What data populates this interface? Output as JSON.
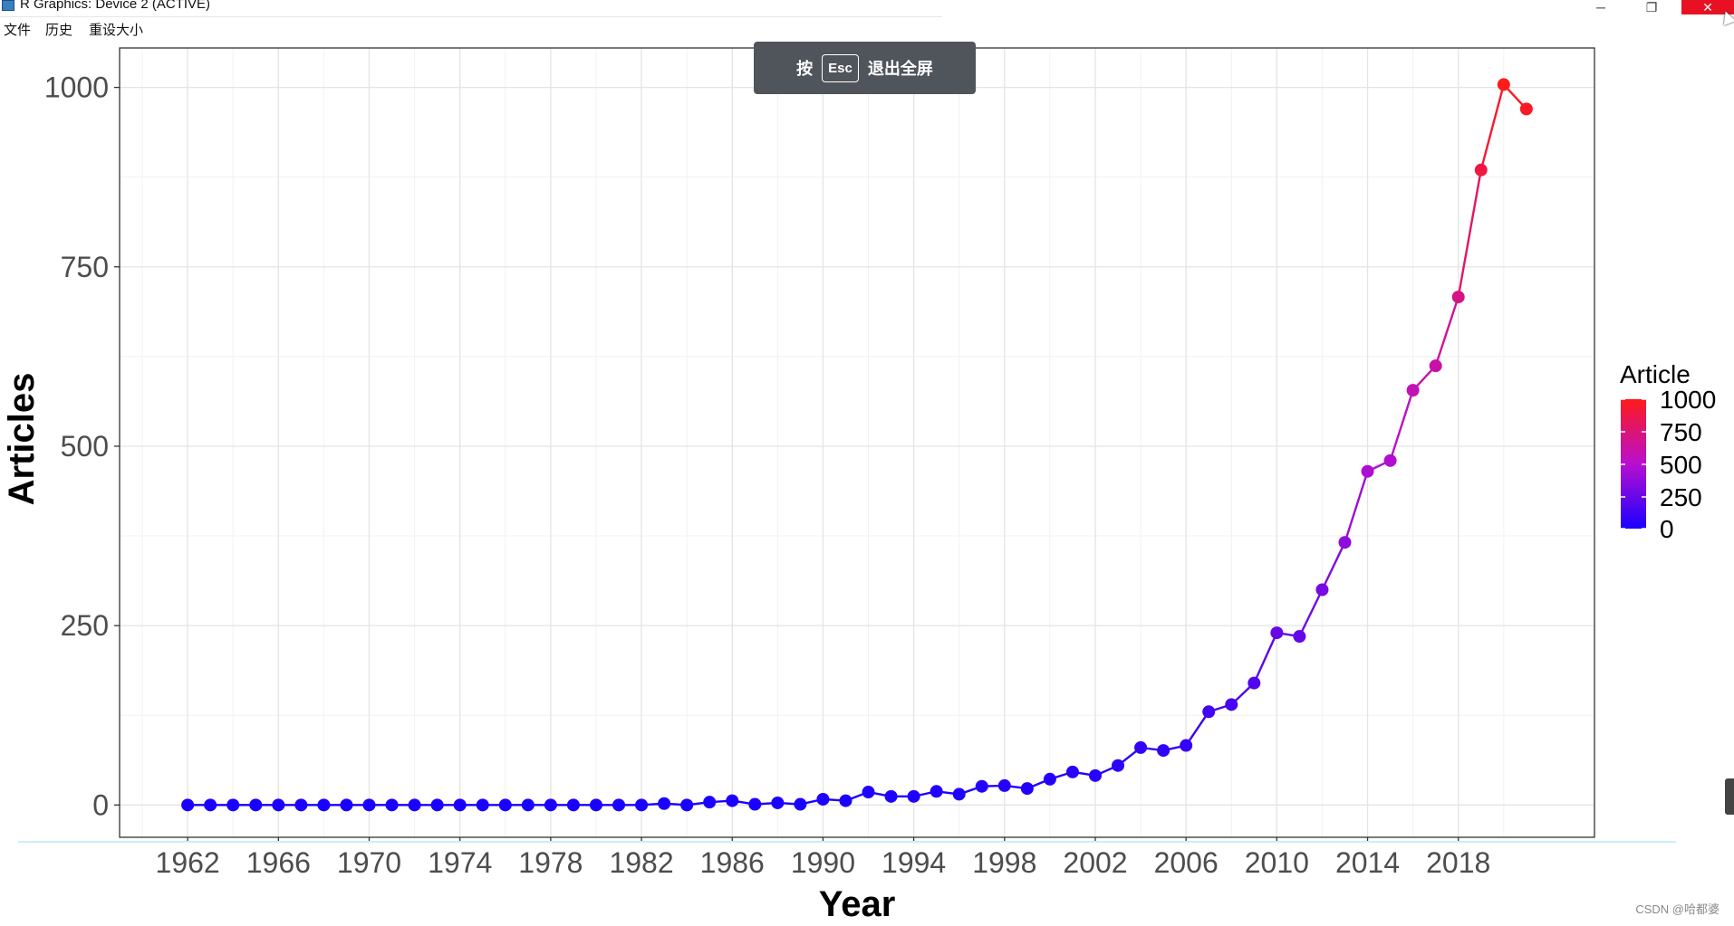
{
  "window": {
    "title": "R Graphics: Device 2 (ACTIVE)",
    "controls": {
      "minimize": "─",
      "maximize": "❐",
      "close": "✕"
    }
  },
  "menu": {
    "items": [
      "文件",
      "历史",
      "重设大小"
    ]
  },
  "esc_banner": {
    "prefix": "按",
    "key": "Esc",
    "suffix": "退出全屏"
  },
  "chart_data": {
    "type": "line",
    "xlabel": "Year",
    "ylabel": "Articles",
    "xlim": [
      1959,
      2024
    ],
    "ylim": [
      -45,
      1055
    ],
    "x_ticks": [
      1962,
      1966,
      1970,
      1974,
      1978,
      1982,
      1986,
      1990,
      1994,
      1998,
      2002,
      2006,
      2010,
      2014,
      2018
    ],
    "y_ticks": [
      0,
      250,
      500,
      750,
      1000
    ],
    "grid": true,
    "legend": {
      "title": "Article",
      "position": "right",
      "labels": [
        "1000",
        "750",
        "500",
        "250",
        "0"
      ],
      "color_low": "#1a00ff",
      "color_high": "#ff1a1a"
    },
    "x": [
      1962,
      1963,
      1964,
      1965,
      1966,
      1967,
      1968,
      1969,
      1970,
      1971,
      1972,
      1973,
      1974,
      1975,
      1976,
      1977,
      1978,
      1979,
      1980,
      1981,
      1982,
      1983,
      1984,
      1985,
      1986,
      1987,
      1988,
      1989,
      1990,
      1991,
      1992,
      1993,
      1994,
      1995,
      1996,
      1997,
      1998,
      1999,
      2000,
      2001,
      2002,
      2003,
      2004,
      2005,
      2006,
      2007,
      2008,
      2009,
      2010,
      2011,
      2012,
      2013,
      2014,
      2015,
      2016,
      2017,
      2018,
      2019,
      2020,
      2021
    ],
    "y": [
      0,
      0,
      0,
      0,
      0,
      0,
      0,
      0,
      0,
      0,
      0,
      0,
      0,
      0,
      0,
      0,
      0,
      0,
      0,
      0,
      0,
      2,
      0,
      4,
      6,
      1,
      3,
      1,
      8,
      6,
      18,
      12,
      12,
      19,
      15,
      26,
      27,
      23,
      36,
      46,
      41,
      55,
      80,
      76,
      83,
      130,
      140,
      170,
      240,
      235,
      300,
      366,
      465,
      480,
      578,
      612,
      708,
      885,
      1004,
      970
    ]
  },
  "watermark": "CSDN @哈都婆"
}
